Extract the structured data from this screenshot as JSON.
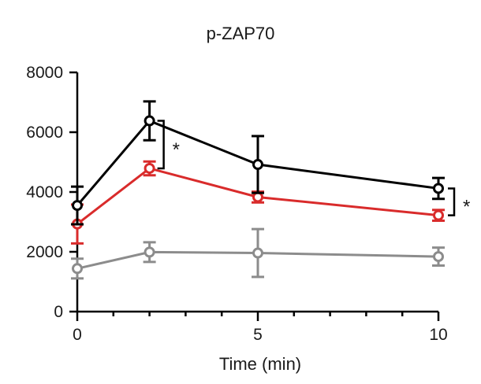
{
  "chart_data": {
    "type": "line",
    "title": "p-ZAP70",
    "xlabel": "Time (min)",
    "ylabel": "",
    "xlim": [
      0,
      10
    ],
    "ylim": [
      0,
      8000
    ],
    "xticks": [
      0,
      5,
      10
    ],
    "yticks": [
      0,
      2000,
      4000,
      6000,
      8000
    ],
    "x": [
      0,
      2,
      5,
      10
    ],
    "series": [
      {
        "color": "#000000",
        "values": [
          3550,
          6380,
          4920,
          4120
        ],
        "errors": [
          630,
          650,
          950,
          350
        ]
      },
      {
        "color": "#d92b2b",
        "values": [
          2930,
          4790,
          3830,
          3220
        ],
        "errors": [
          650,
          230,
          180,
          180
        ]
      },
      {
        "color": "#8c8c8c",
        "values": [
          1440,
          1990,
          1960,
          1840
        ],
        "errors": [
          330,
          330,
          800,
          300
        ]
      }
    ],
    "annotations": [
      {
        "text": "*",
        "x": 2,
        "between": [
          6380,
          4790
        ]
      },
      {
        "text": "*",
        "x": 10,
        "between": [
          4120,
          3220
        ]
      }
    ],
    "grid": false,
    "legend": "none"
  }
}
